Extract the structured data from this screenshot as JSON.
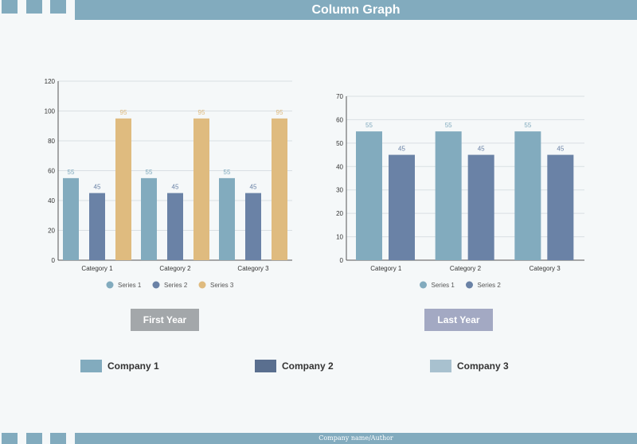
{
  "header": {
    "title": "Column Graph"
  },
  "footer": {
    "text": "Company name/Author"
  },
  "colors": {
    "accent": "#82abbe",
    "series1": "#82abbe",
    "series2": "#6a82a6",
    "series3": "#dfbb7f",
    "background": "#f5f8f9",
    "first_year_button": "#a3a7aa",
    "last_year_button": "#a3a9c3",
    "company1": "#82abbe",
    "company2": "#5a6f8f",
    "company3": "#a8c1cf"
  },
  "chart_data": [
    {
      "type": "bar",
      "categories": [
        "Category 1",
        "Category 2",
        "Category 3"
      ],
      "series": [
        {
          "name": "Series 1",
          "values": [
            55,
            55,
            55
          ],
          "color": "#82abbe"
        },
        {
          "name": "Series 2",
          "values": [
            45,
            45,
            45
          ],
          "color": "#6a82a6"
        },
        {
          "name": "Series 3",
          "values": [
            95,
            95,
            95
          ],
          "color": "#dfbb7f"
        }
      ],
      "ylim": [
        0,
        120
      ],
      "yticks": [
        0,
        20,
        40,
        60,
        80,
        100,
        120
      ],
      "grid": true,
      "data_labels": true,
      "legend_position": "bottom"
    },
    {
      "type": "bar",
      "categories": [
        "Category 1",
        "Category 2",
        "Category 3"
      ],
      "series": [
        {
          "name": "Series 1",
          "values": [
            55,
            55,
            55
          ],
          "color": "#82abbe"
        },
        {
          "name": "Series 2",
          "values": [
            45,
            45,
            45
          ],
          "color": "#6a82a6"
        }
      ],
      "ylim": [
        0,
        70
      ],
      "yticks": [
        0,
        10,
        20,
        30,
        40,
        50,
        60,
        70
      ],
      "grid": true,
      "data_labels": true,
      "legend_position": "bottom"
    }
  ],
  "buttons": {
    "first_year": "First Year",
    "last_year": "Last Year"
  },
  "companies": [
    {
      "label": "Company 1",
      "color": "#82abbe"
    },
    {
      "label": "Company 2",
      "color": "#5a6f8f"
    },
    {
      "label": "Company 3",
      "color": "#a8c1cf"
    }
  ]
}
